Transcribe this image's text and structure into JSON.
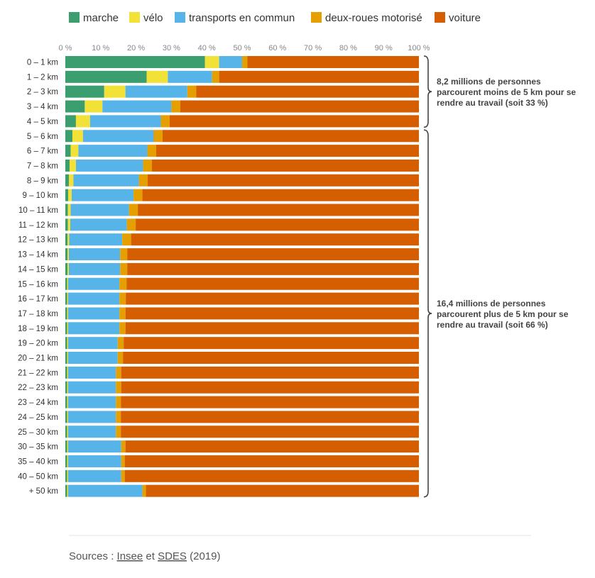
{
  "chart_data": {
    "type": "bar",
    "orientation": "horizontal",
    "stacked": true,
    "xlim": [
      0,
      100
    ],
    "x_ticks": [
      "0 %",
      "10 %",
      "20 %",
      "30 %",
      "40 %",
      "50 %",
      "60 %",
      "70 %",
      "80 %",
      "90 %",
      "100 %"
    ],
    "categories": [
      "0 – 1 km",
      "1 – 2 km",
      "2 – 3 km",
      "3 – 4 km",
      "4 – 5 km",
      "5 – 6 km",
      "6 – 7 km",
      "7 – 8 km",
      "8 – 9 km",
      "9 – 10 km",
      "10 – 11 km",
      "11 – 12 km",
      "12 – 13 km",
      "13 – 14 km",
      "14 – 15 km",
      "15 – 16 km",
      "16 – 17 km",
      "17 – 18 km",
      "18 – 19 km",
      "19 – 20 km",
      "20 – 21 km",
      "21 – 22 km",
      "22 – 23 km",
      "23 – 24 km",
      "24 – 25 km",
      "25 – 30 km",
      "30 – 35 km",
      "35 – 40 km",
      "40 – 50 km",
      "+ 50 km"
    ],
    "series": [
      {
        "name": "marche",
        "color": "#3a9e6f",
        "values": [
          39.5,
          23,
          11,
          5.5,
          3,
          2,
          1.5,
          1.2,
          1,
          0.8,
          0.7,
          0.7,
          0.6,
          0.6,
          0.6,
          0.5,
          0.5,
          0.5,
          0.5,
          0.5,
          0.5,
          0.5,
          0.5,
          0.5,
          0.5,
          0.5,
          0.5,
          0.5,
          0.5,
          0.5
        ]
      },
      {
        "name": "vélo",
        "color": "#f2e136",
        "values": [
          4,
          6,
          6,
          5,
          4,
          3,
          2.2,
          1.8,
          1.3,
          1,
          0.8,
          0.7,
          0.5,
          0.4,
          0.4,
          0.3,
          0.3,
          0.3,
          0.3,
          0.3,
          0.3,
          0.3,
          0.3,
          0.3,
          0.3,
          0.3,
          0.3,
          0.3,
          0.3,
          0.3
        ]
      },
      {
        "name": "transports en commun",
        "color": "#56b4e9",
        "values": [
          6.5,
          12.5,
          17.5,
          19.5,
          20,
          20,
          19.5,
          19,
          18.5,
          17.5,
          16.5,
          16,
          15,
          14.5,
          14.5,
          14.5,
          14.5,
          14.5,
          14.5,
          14,
          14,
          13.5,
          13.5,
          13.5,
          13.5,
          13.5,
          15,
          15,
          15,
          21
        ]
      },
      {
        "name": "deux-roues motorisé",
        "color": "#e69f00",
        "values": [
          1.5,
          2,
          2.5,
          2.5,
          2.5,
          2.5,
          2.5,
          2.5,
          2.5,
          2.5,
          2.5,
          2.5,
          2.5,
          2,
          2,
          2,
          1.8,
          1.7,
          1.7,
          1.7,
          1.5,
          1.5,
          1.5,
          1.4,
          1.4,
          1.4,
          1.2,
          1,
          1,
          1
        ]
      },
      {
        "name": "voiture",
        "color": "#d55e00",
        "values": [
          48.5,
          56.5,
          63,
          67.5,
          70.5,
          72.5,
          74.3,
          75.5,
          76.7,
          78.2,
          79.5,
          80.1,
          81.4,
          82.5,
          82.5,
          82.7,
          82.9,
          83,
          83,
          83.5,
          83.7,
          84.2,
          84.2,
          84.3,
          84.3,
          84.3,
          83,
          83.2,
          83.2,
          77.2
        ]
      }
    ],
    "annotations": [
      {
        "text_lines": [
          "8,2 millions de personnes",
          "parcourent moins de 5 km pour se",
          "rendre au travail (soit 33 %)"
        ],
        "from": "0 – 1 km",
        "to": "4 – 5 km"
      },
      {
        "text_lines": [
          "16,4 millions de personnes",
          "parcourent plus de 5 km pour se",
          "rendre au travail (soit 66 %)"
        ],
        "from": "5 – 6 km",
        "to": "+ 50 km"
      }
    ],
    "legend_position": "top-left",
    "grid": false
  },
  "source": {
    "prefix": "Sources : ",
    "link1": "Insee",
    "middle": " et ",
    "link2": "SDES",
    "suffix": " (2019)"
  }
}
